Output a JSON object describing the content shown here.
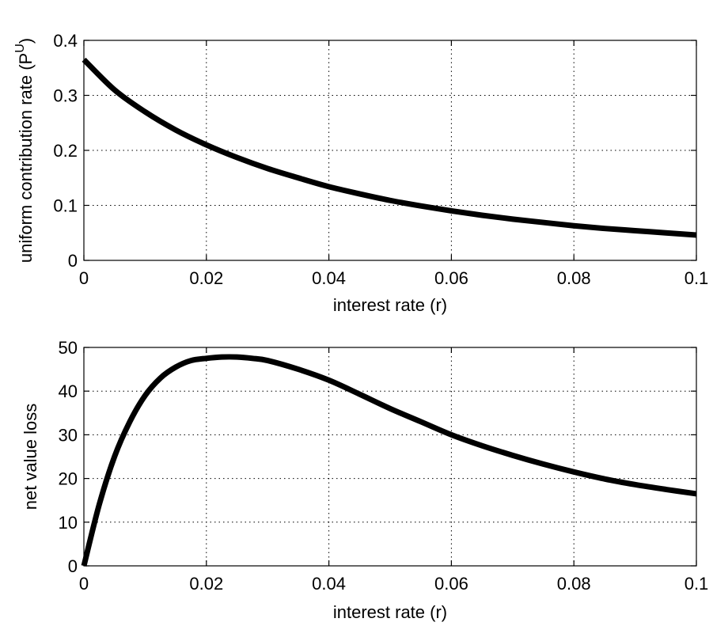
{
  "colors": {
    "line": "#000000",
    "grid": "#000000",
    "background": "#ffffff"
  },
  "chart_data": [
    {
      "type": "line",
      "xlabel": "interest rate (r)",
      "ylabel": "uniform contribution rate (P",
      "ylabel_superscript": "U",
      "ylabel_close": ")",
      "xlim": [
        0,
        0.1
      ],
      "ylim": [
        0,
        0.4
      ],
      "xticks": [
        0,
        0.02,
        0.04,
        0.06,
        0.08,
        0.1
      ],
      "xtick_labels": [
        "0",
        "0.02",
        "0.04",
        "0.06",
        "0.08",
        "0.1"
      ],
      "yticks": [
        0,
        0.1,
        0.2,
        0.3,
        0.4
      ],
      "ytick_labels": [
        "0",
        "0.1",
        "0.2",
        "0.3",
        "0.4"
      ],
      "grid": true,
      "x": [
        0,
        0.005,
        0.01,
        0.015,
        0.02,
        0.025,
        0.03,
        0.035,
        0.04,
        0.045,
        0.05,
        0.055,
        0.06,
        0.065,
        0.07,
        0.075,
        0.08,
        0.085,
        0.09,
        0.095,
        0.1
      ],
      "y": [
        0.365,
        0.31,
        0.27,
        0.237,
        0.21,
        0.187,
        0.167,
        0.15,
        0.134,
        0.121,
        0.109,
        0.099,
        0.09,
        0.082,
        0.075,
        0.069,
        0.063,
        0.058,
        0.054,
        0.05,
        0.046
      ]
    },
    {
      "type": "line",
      "xlabel": "interest rate (r)",
      "ylabel": "net value loss",
      "xlim": [
        0,
        0.1
      ],
      "ylim": [
        0,
        50
      ],
      "xticks": [
        0,
        0.02,
        0.04,
        0.06,
        0.08,
        0.1
      ],
      "xtick_labels": [
        "0",
        "0.02",
        "0.04",
        "0.06",
        "0.08",
        "0.1"
      ],
      "yticks": [
        0,
        10,
        20,
        30,
        40,
        50
      ],
      "ytick_labels": [
        "0",
        "10",
        "20",
        "30",
        "40",
        "50"
      ],
      "grid": true,
      "x": [
        0,
        0.0025,
        0.005,
        0.0075,
        0.01,
        0.0125,
        0.015,
        0.0175,
        0.02,
        0.0225,
        0.025,
        0.0275,
        0.03,
        0.035,
        0.04,
        0.045,
        0.05,
        0.055,
        0.06,
        0.065,
        0.07,
        0.075,
        0.08,
        0.085,
        0.09,
        0.095,
        0.1
      ],
      "y": [
        0,
        14,
        25,
        33,
        39,
        43,
        45.5,
        47,
        47.5,
        47.8,
        47.8,
        47.5,
        47,
        45,
        42.5,
        39.3,
        36,
        33,
        30,
        27.5,
        25.3,
        23.3,
        21.5,
        19.9,
        18.6,
        17.5,
        16.5
      ]
    }
  ]
}
